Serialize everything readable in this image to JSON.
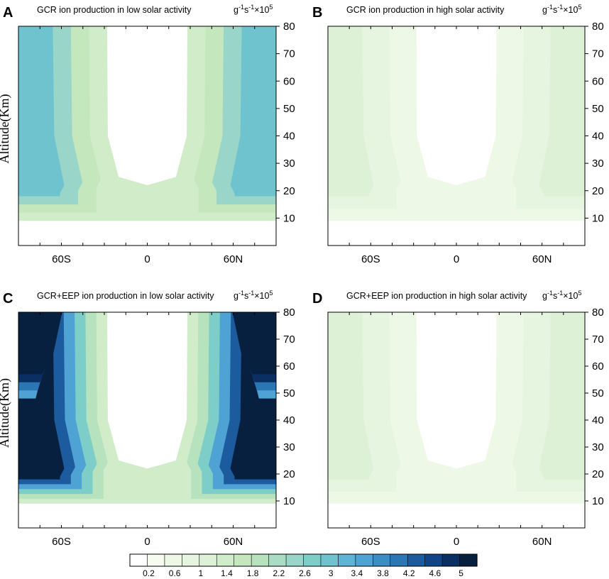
{
  "colors": {
    "scale": [
      "#ffffff",
      "#f7fcf0",
      "#eef8e6",
      "#e6f5df",
      "#dcf1d6",
      "#d0ecc9",
      "#c4e7bd",
      "#b6e2bd",
      "#a8dcc4",
      "#99d6c9",
      "#7dcdc8",
      "#6ec3ce",
      "#5fb4d6",
      "#4ea3d4",
      "#3c8dc3",
      "#2b76b4",
      "#1c5c9e",
      "#0f4487",
      "#0a2f63",
      "#08203f"
    ],
    "white": "#ffffff",
    "axis": "#000000"
  },
  "colorbar": {
    "labels": [
      "0.2",
      "0.6",
      "1",
      "1.4",
      "1.8",
      "2.2",
      "2.6",
      "3",
      "3.4",
      "3.8",
      "4.2",
      "4.6",
      "5"
    ]
  },
  "chart_data": [
    {
      "id": "A",
      "type": "contour",
      "panel_label": "A",
      "title": "GCR ion production in low solar activity",
      "unit": "g-1s-1×105",
      "unit_parts": {
        "g": "g",
        "exp1": "-1",
        "s": "s",
        "exp2": "-1",
        "times": "×10",
        "exp3": "5"
      },
      "xlabel": "",
      "ylabel": "Altitude(Km)",
      "xticks": [
        "60S",
        "0",
        "60N"
      ],
      "yticks": [
        "10",
        "20",
        "30",
        "40",
        "50",
        "60",
        "70",
        "80"
      ],
      "xlim": [
        -90,
        90
      ],
      "ylim": [
        0,
        80
      ],
      "levels_max": [
        1.1,
        1.6,
        2.2,
        2.9
      ],
      "pattern": "gcr"
    },
    {
      "id": "B",
      "type": "contour",
      "panel_label": "B",
      "title": "GCR ion production in high solar activity",
      "unit": "g-1s-1×105",
      "unit_parts": {
        "g": "g",
        "exp1": "-1",
        "s": "s",
        "exp2": "-1",
        "times": "×10",
        "exp3": "5"
      },
      "xlabel": "",
      "ylabel": "",
      "xticks": [
        "60S",
        "0",
        "60N"
      ],
      "yticks": [
        "10",
        "20",
        "30",
        "40",
        "50",
        "60",
        "70",
        "80"
      ],
      "xlim": [
        -90,
        90
      ],
      "ylim": [
        0,
        80
      ],
      "levels_max": [
        0.4,
        0.7,
        0.9
      ],
      "pattern": "gcr_high"
    },
    {
      "id": "C",
      "type": "contour",
      "panel_label": "C",
      "title": "GCR+EEP ion production in low solar activity",
      "unit": "g-1s-1×105",
      "unit_parts": {
        "g": "g",
        "exp1": "-1",
        "s": "s",
        "exp2": "-1",
        "times": "×10",
        "exp3": "5"
      },
      "xlabel": "",
      "ylabel": "Altitude(Km)",
      "xticks": [
        "60S",
        "0",
        "60N"
      ],
      "yticks": [
        "10",
        "20",
        "30",
        "40",
        "50",
        "60",
        "70",
        "80"
      ],
      "xlim": [
        -90,
        90
      ],
      "ylim": [
        0,
        80
      ],
      "levels_max": [
        1.2,
        1.8,
        2.6,
        3.4,
        4.2,
        5.0
      ],
      "pattern": "eep"
    },
    {
      "id": "D",
      "type": "contour",
      "panel_label": "D",
      "title": "GCR+EEP ion production in high solar activity",
      "unit": "g-1s-1×105",
      "unit_parts": {
        "g": "g",
        "exp1": "-1",
        "s": "s",
        "exp2": "-1",
        "times": "×10",
        "exp3": "5"
      },
      "xlabel": "",
      "ylabel": "",
      "xticks": [
        "60S",
        "0",
        "60N"
      ],
      "yticks": [
        "10",
        "20",
        "30",
        "40",
        "50",
        "60",
        "70",
        "80"
      ],
      "xlim": [
        -90,
        90
      ],
      "ylim": [
        0,
        80
      ],
      "levels_max": [
        0.4,
        0.7,
        1.0
      ],
      "pattern": "eep_high"
    }
  ]
}
